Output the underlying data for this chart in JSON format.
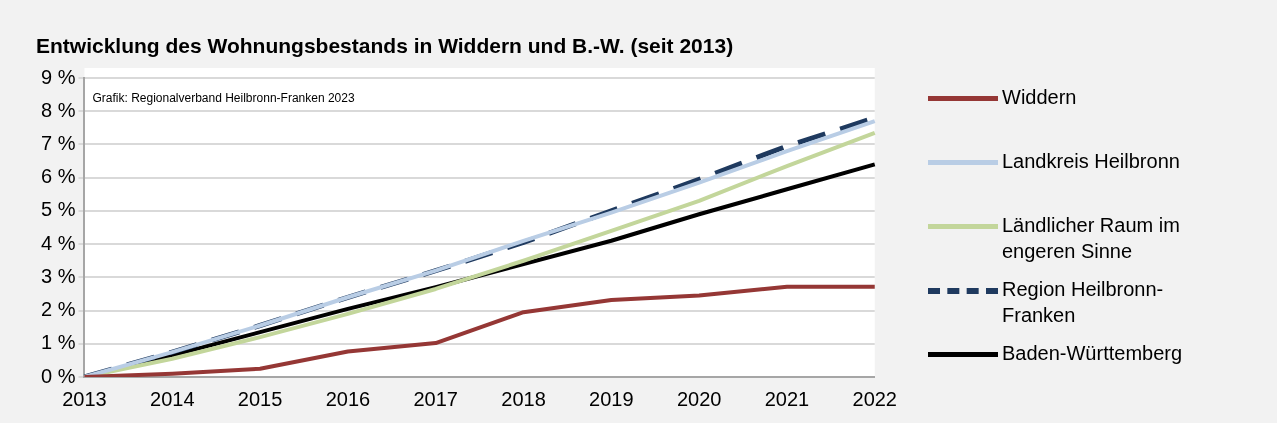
{
  "chart_data": {
    "type": "line",
    "title": "Entwicklung des Wohnungsbestands in Widdern und B.-W. (seit 2013)",
    "annotations": [
      "Grafik: Regionalverband Heilbronn-Franken 2023"
    ],
    "categories": [
      "2013",
      "2014",
      "2015",
      "2016",
      "2017",
      "2018",
      "2019",
      "2020",
      "2021",
      "2022"
    ],
    "ylim": [
      0,
      9
    ],
    "yticks": [
      {
        "value": 0,
        "label": "0 %"
      },
      {
        "value": 1,
        "label": "1 %"
      },
      {
        "value": 2,
        "label": "2 %"
      },
      {
        "value": 3,
        "label": "3 %"
      },
      {
        "value": 4,
        "label": "4 %"
      },
      {
        "value": 5,
        "label": "5 %"
      },
      {
        "value": 6,
        "label": "6 %"
      },
      {
        "value": 7,
        "label": "7 %"
      },
      {
        "value": 8,
        "label": "8 %"
      },
      {
        "value": 9,
        "label": "9 %"
      }
    ],
    "grid": "y",
    "legend": "right",
    "marker": "none",
    "series": [
      {
        "name": "Widdern",
        "color": "#953735",
        "values": [
          0,
          0.1,
          0.25,
          0.77,
          1.02,
          1.95,
          2.32,
          2.45,
          2.72,
          2.72
        ]
      },
      {
        "name": "Landkreis Heilbronn",
        "color": "#b9cde5",
        "values": [
          0,
          0.75,
          1.55,
          2.4,
          3.2,
          4.1,
          4.95,
          5.85,
          6.8,
          7.7
        ]
      },
      {
        "name": "Ländlicher Raum im engeren Sinne",
        "color": "#c3d69b",
        "values": [
          0,
          0.55,
          1.2,
          1.9,
          2.65,
          3.5,
          4.4,
          5.3,
          6.35,
          7.35
        ]
      },
      {
        "name": "Region Heilbronn-Franken",
        "color": "#1f3a5f",
        "line_style": "dashed",
        "values": [
          0,
          0.75,
          1.55,
          2.4,
          3.2,
          4.05,
          5.0,
          5.95,
          6.95,
          7.8
        ]
      },
      {
        "name": "Baden-Württemberg",
        "color": "#000000",
        "values": [
          0,
          0.65,
          1.35,
          2.05,
          2.7,
          3.4,
          4.1,
          4.9,
          5.65,
          6.4
        ]
      }
    ]
  }
}
